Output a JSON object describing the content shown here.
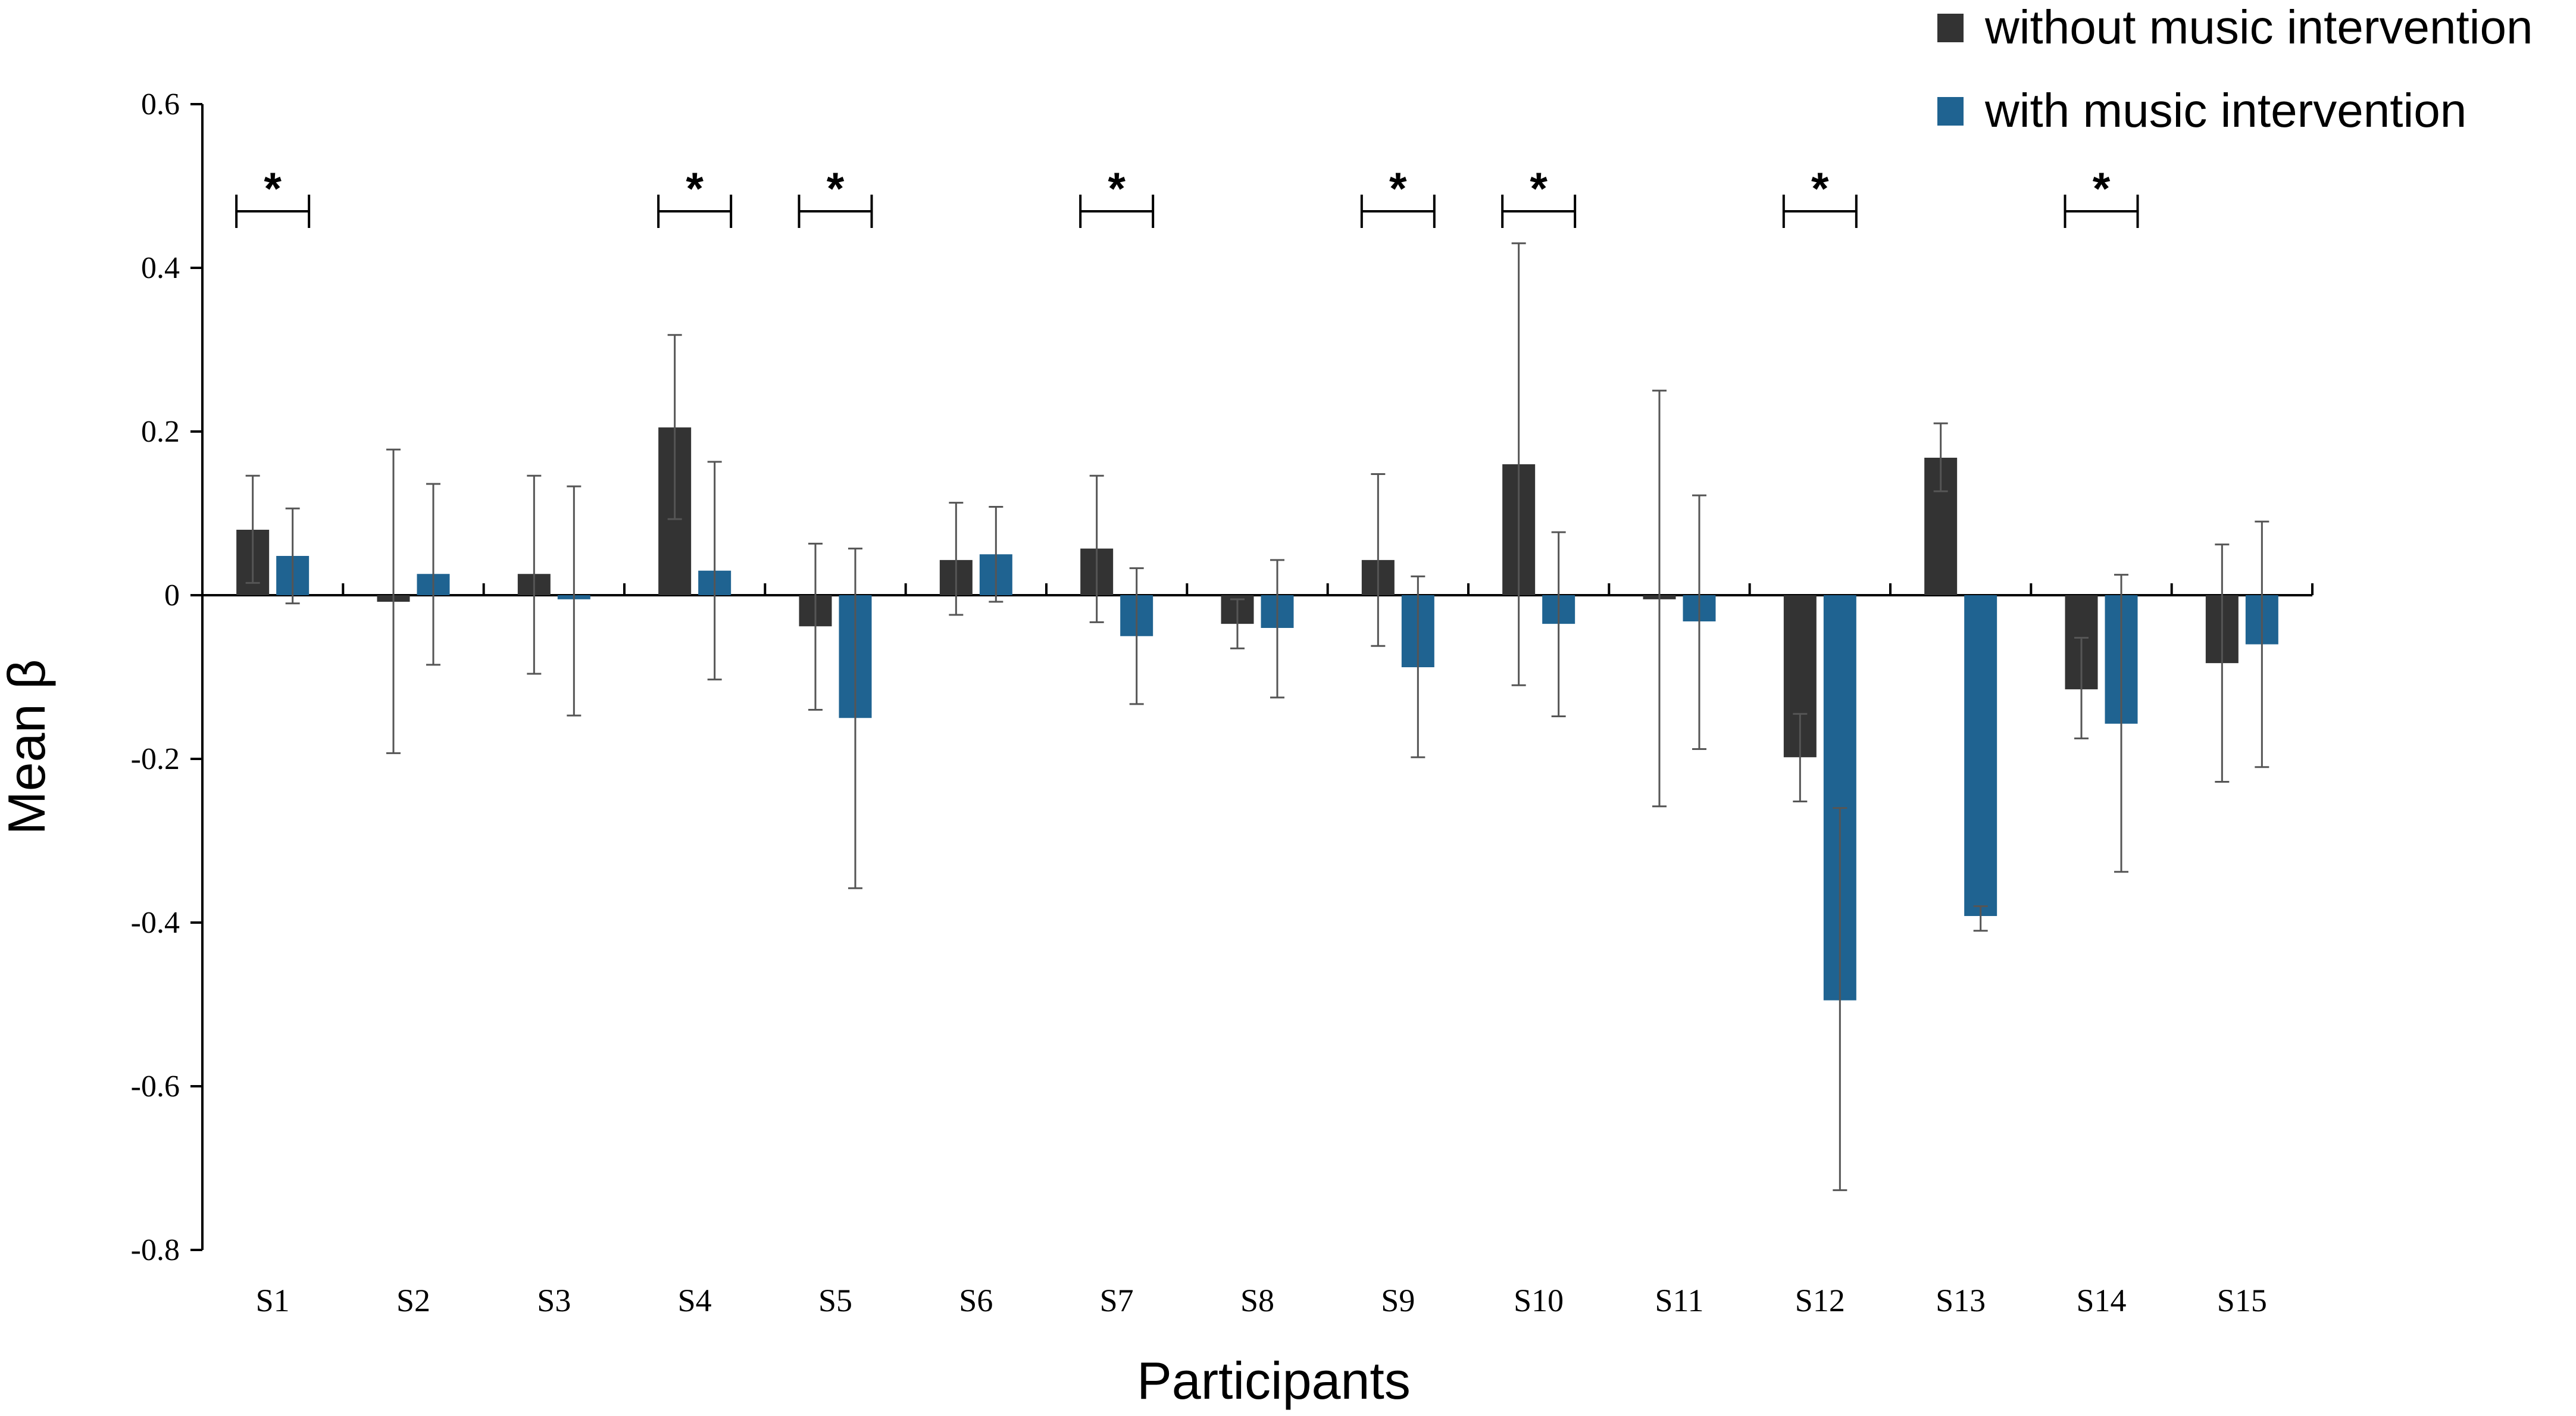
{
  "chart_data": {
    "type": "bar",
    "title": "",
    "xlabel": "Participants",
    "ylabel": "Mean β",
    "ylim": [
      -0.8,
      0.6
    ],
    "yticks": [
      0.6,
      0.4,
      0.2,
      0,
      -0.2,
      -0.4,
      -0.6,
      -0.8
    ],
    "ytick_labels": [
      "0.6",
      "0.4",
      "0.2",
      "0",
      "-0.2",
      "-0.4",
      "-0.6",
      "-0.8"
    ],
    "categories": [
      "S1",
      "S2",
      "S3",
      "S4",
      "S5",
      "S6",
      "S7",
      "S8",
      "S9",
      "S10",
      "S11",
      "S12",
      "S13",
      "S14",
      "S15"
    ],
    "legend_position": "top-right",
    "series": [
      {
        "name": "without music intervention",
        "color": "#333333",
        "values": [
          0.08,
          -0.008,
          0.026,
          0.205,
          -0.038,
          0.043,
          0.057,
          -0.035,
          0.043,
          0.16,
          -0.005,
          -0.198,
          0.168,
          -0.115,
          -0.083
        ],
        "error_low": [
          0.015,
          -0.193,
          -0.096,
          0.093,
          -0.14,
          -0.024,
          -0.033,
          -0.065,
          -0.062,
          -0.11,
          -0.258,
          -0.252,
          0.127,
          -0.175,
          -0.228
        ],
        "error_high": [
          0.146,
          0.178,
          0.146,
          0.318,
          0.063,
          0.113,
          0.146,
          -0.005,
          0.148,
          0.43,
          0.25,
          -0.145,
          0.21,
          -0.052,
          0.062
        ]
      },
      {
        "name": "with music intervention",
        "color": "#1f6391",
        "values": [
          0.048,
          0.026,
          -0.005,
          0.03,
          -0.15,
          0.05,
          -0.05,
          -0.04,
          -0.088,
          -0.035,
          -0.032,
          -0.495,
          -0.392,
          -0.157,
          -0.06
        ],
        "error_low": [
          -0.01,
          -0.085,
          -0.147,
          -0.103,
          -0.358,
          -0.008,
          -0.133,
          -0.125,
          -0.198,
          -0.148,
          -0.188,
          -0.727,
          -0.41,
          -0.338,
          -0.21
        ],
        "error_high": [
          0.106,
          0.136,
          0.133,
          0.163,
          0.057,
          0.108,
          0.033,
          0.043,
          0.023,
          0.077,
          0.122,
          -0.26,
          -0.38,
          0.025,
          0.09
        ]
      }
    ],
    "significance": {
      "marker": "*",
      "categories": [
        "S1",
        "S4",
        "S5",
        "S7",
        "S9",
        "S10",
        "S12",
        "S14"
      ]
    }
  }
}
